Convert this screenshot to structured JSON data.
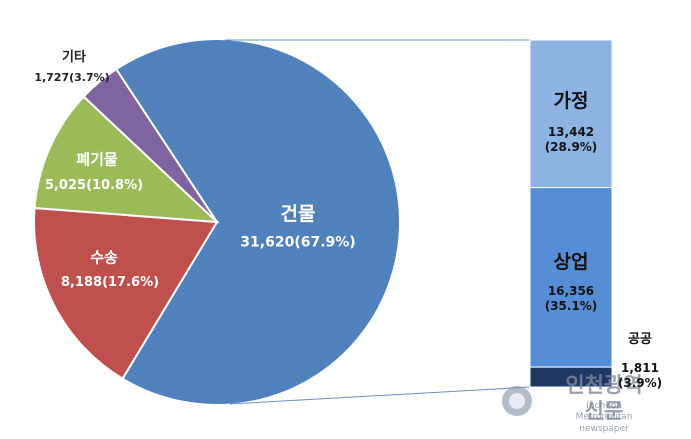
{
  "chart_data": {
    "type": "pie",
    "categories": [
      "건물",
      "수송",
      "폐기물",
      "기타"
    ],
    "values": [
      31620,
      8188,
      5025,
      1727
    ],
    "value_labels": [
      "31,620(67.9%)",
      "8,188(17.6%)",
      "5,025(10.8%)",
      "1,727(3.7%)"
    ],
    "colors": [
      "#4f81bd",
      "#c0504d",
      "#9bbb59",
      "#8064a2"
    ],
    "breakdown": {
      "categories": [
        "가정",
        "상업",
        "공공"
      ],
      "values": [
        13442,
        16356,
        1811
      ],
      "value_labels": [
        "13,442\n(28.9%)",
        "16,356\n(35.1%)",
        "1,811\n(3.9%)"
      ],
      "colors": [
        "#8db3e2",
        "#558ed5",
        "#1f3864"
      ]
    }
  },
  "watermark": {
    "title": "인천광역신문",
    "subtitle": "Incheon Metropolitan newspaper"
  }
}
